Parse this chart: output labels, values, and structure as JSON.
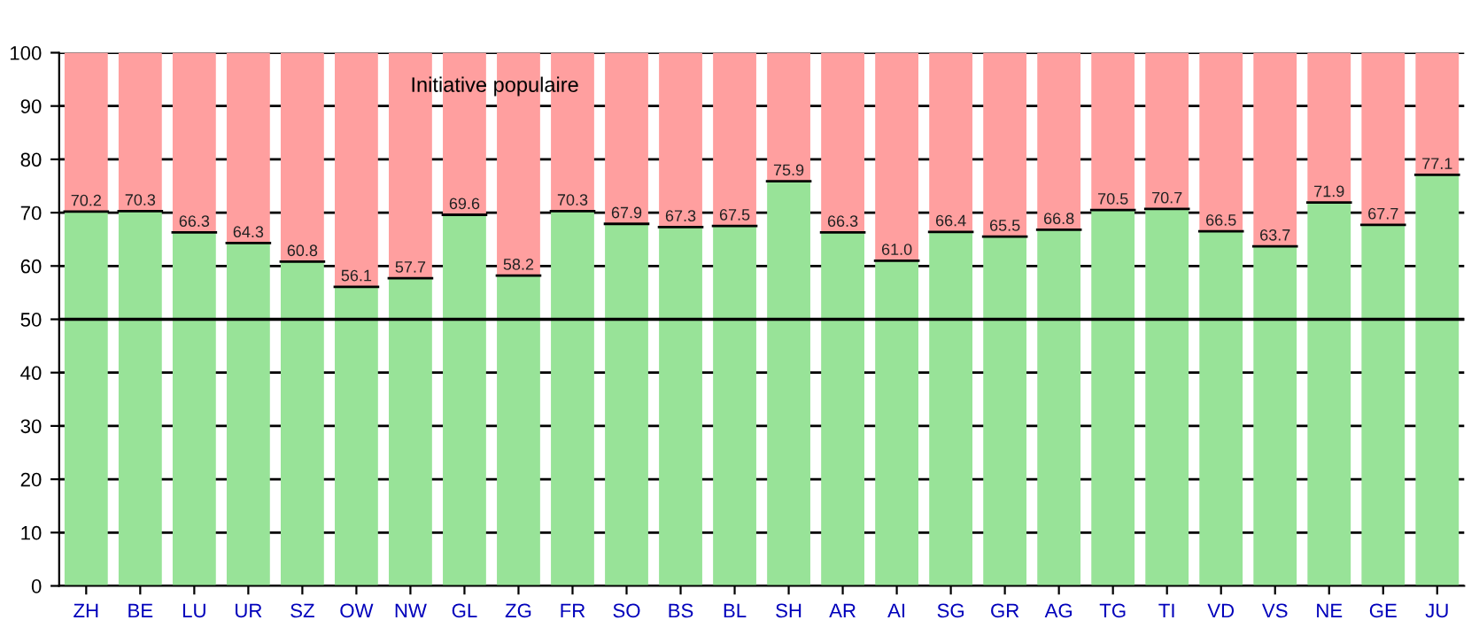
{
  "chart_data": {
    "type": "bar",
    "title": "Initiative populaire",
    "stacked": true,
    "categories": [
      "ZH",
      "BE",
      "LU",
      "UR",
      "SZ",
      "OW",
      "NW",
      "GL",
      "ZG",
      "FR",
      "SO",
      "BS",
      "BL",
      "SH",
      "AR",
      "AI",
      "SG",
      "GR",
      "AG",
      "TG",
      "TI",
      "VD",
      "VS",
      "NE",
      "GE",
      "JU"
    ],
    "series": [
      {
        "color": "#98e398",
        "values": [
          70.2,
          70.3,
          66.3,
          64.3,
          60.8,
          56.1,
          57.7,
          69.6,
          58.2,
          70.3,
          67.9,
          67.3,
          67.5,
          75.9,
          66.3,
          61.0,
          66.4,
          65.5,
          66.8,
          70.5,
          70.7,
          66.5,
          63.7,
          71.9,
          67.7,
          77.1
        ],
        "value_labels": [
          "70.2",
          "70.3",
          "66.3",
          "64.3",
          "60.8",
          "56.1",
          "57.7",
          "69.6",
          "58.2",
          "70.3",
          "67.9",
          "67.3",
          "67.5",
          "75.9",
          "66.3",
          "61.0",
          "66.4",
          "65.5",
          "66.8",
          "70.5",
          "70.7",
          "66.5",
          "63.7",
          "71.9",
          "67.7",
          "77.1"
        ]
      },
      {
        "color": "#ff9f9f",
        "values": [
          29.8,
          29.7,
          33.7,
          35.7,
          39.2,
          43.9,
          42.3,
          30.4,
          41.8,
          29.7,
          32.1,
          32.7,
          32.5,
          24.1,
          33.7,
          39.0,
          33.6,
          34.5,
          33.2,
          29.5,
          29.3,
          33.5,
          36.3,
          28.1,
          32.3,
          22.9
        ]
      }
    ],
    "ylim": [
      0,
      100
    ],
    "yticks": [
      0,
      10,
      20,
      30,
      40,
      50,
      60,
      70,
      80,
      90,
      100
    ],
    "grid": "y",
    "ref_lines": [
      {
        "axis": "y",
        "value": 50,
        "color": "#000000"
      }
    ]
  }
}
